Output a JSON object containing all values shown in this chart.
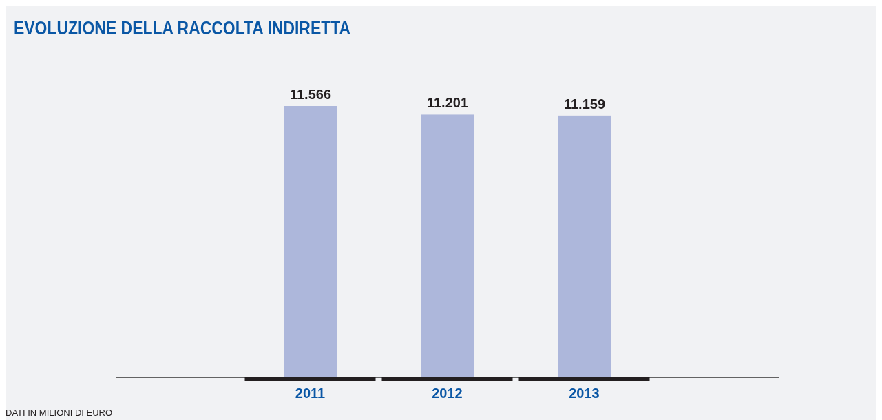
{
  "chart_data": {
    "type": "bar",
    "title": "EVOLUZIONE DELLA RACCOLTA INDIRETTA",
    "categories": [
      "2011",
      "2012",
      "2013"
    ],
    "series": [
      {
        "color": "#adb7db",
        "values": [
          11566,
          11201,
          11159
        ],
        "value_labels": [
          "11.566",
          "11.201",
          "11.159"
        ]
      }
    ],
    "tick_labels": "x",
    "grid": false,
    "legend": false,
    "annotations": [
      "DATI IN MILIONI DI EURO"
    ]
  }
}
